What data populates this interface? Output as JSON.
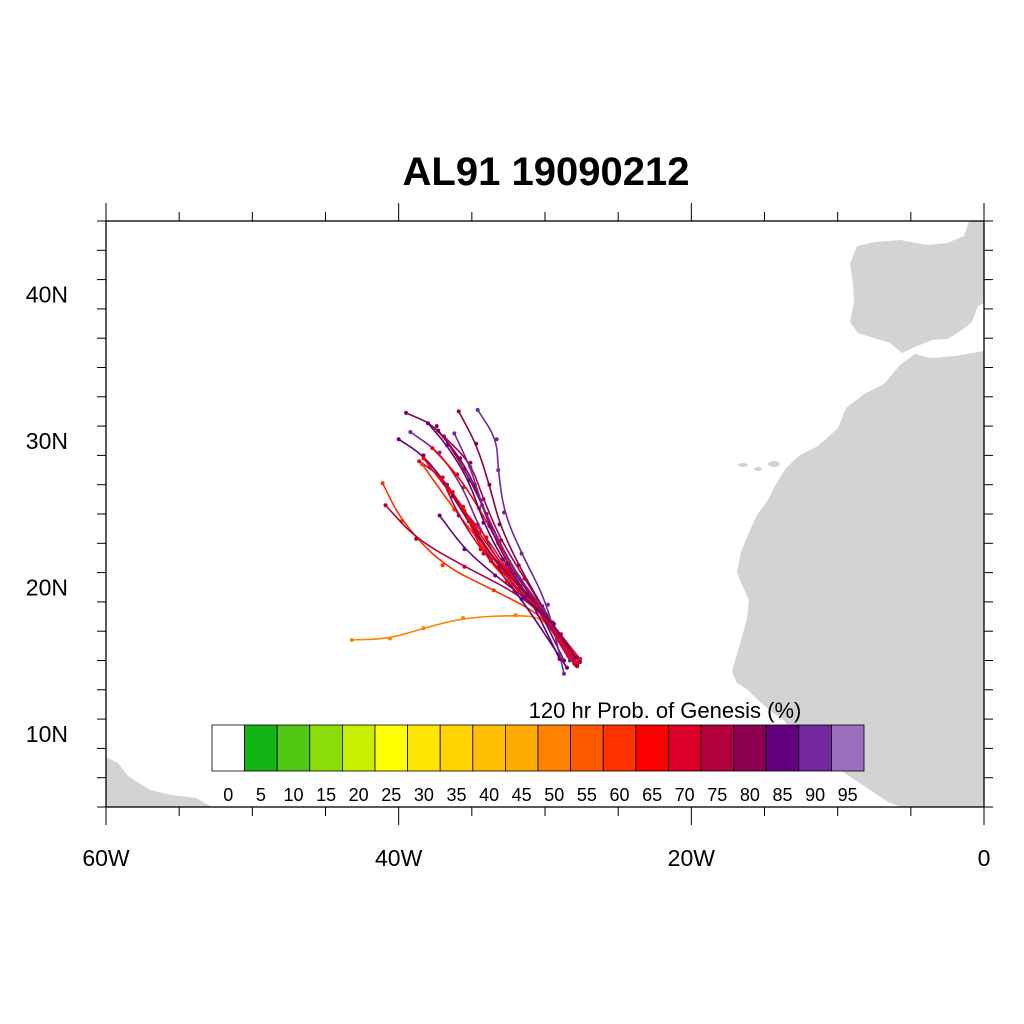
{
  "title": "AL91 19090212",
  "axes": {
    "x_ticks": [
      {
        "lon": -60,
        "label": "60W"
      },
      {
        "lon": -40,
        "label": "40W"
      },
      {
        "lon": -20,
        "label": "20W"
      },
      {
        "lon": 0,
        "label": "0"
      }
    ],
    "y_ticks": [
      {
        "lat": 10,
        "label": "10N"
      },
      {
        "lat": 20,
        "label": "20N"
      },
      {
        "lat": 30,
        "label": "30N"
      },
      {
        "lat": 40,
        "label": "40N"
      }
    ],
    "lon_range": [
      -60,
      0
    ],
    "lat_range": [
      5,
      45
    ]
  },
  "colors": {
    "land": "#d3d3d3",
    "frame": "#000000"
  },
  "legend": {
    "title": "120 hr Prob. of Genesis (%)",
    "bins": [
      {
        "label": "0",
        "color": "#ffffff"
      },
      {
        "label": "5",
        "color": "#14b414"
      },
      {
        "label": "10",
        "color": "#50c814"
      },
      {
        "label": "15",
        "color": "#8cdc0a"
      },
      {
        "label": "20",
        "color": "#c8ee00"
      },
      {
        "label": "25",
        "color": "#ffff00"
      },
      {
        "label": "30",
        "color": "#ffe600"
      },
      {
        "label": "35",
        "color": "#ffd200"
      },
      {
        "label": "40",
        "color": "#ffbe00"
      },
      {
        "label": "45",
        "color": "#ffaa00"
      },
      {
        "label": "50",
        "color": "#ff8200"
      },
      {
        "label": "55",
        "color": "#ff5a00"
      },
      {
        "label": "60",
        "color": "#ff3200"
      },
      {
        "label": "65",
        "color": "#ff0000"
      },
      {
        "label": "70",
        "color": "#dc0028"
      },
      {
        "label": "75",
        "color": "#b4003c"
      },
      {
        "label": "80",
        "color": "#8c0050"
      },
      {
        "label": "85",
        "color": "#64007f"
      },
      {
        "label": "90",
        "color": "#7328a0"
      },
      {
        "label": "95",
        "color": "#9b6ebe"
      }
    ]
  },
  "tracks": [
    {
      "color": "#ff8200",
      "points": [
        [
          -43.2,
          16.4
        ],
        [
          -40.6,
          16.5
        ],
        [
          -38.3,
          17.2
        ],
        [
          -35.6,
          17.9
        ],
        [
          -32,
          18.1
        ],
        [
          -30,
          17.9
        ],
        [
          -28.2,
          15.2
        ]
      ]
    },
    {
      "color": "#ff3200",
      "points": [
        [
          -41.1,
          27.1
        ],
        [
          -39.8,
          24.5
        ],
        [
          -37,
          21.5
        ],
        [
          -33.5,
          19.8
        ],
        [
          -30,
          18
        ],
        [
          -28.1,
          15
        ]
      ]
    },
    {
      "color": "#b4003c",
      "points": [
        [
          -40.9,
          25.6
        ],
        [
          -38.8,
          23.3
        ],
        [
          -35.5,
          21.4
        ],
        [
          -32.1,
          19.7
        ],
        [
          -29.5,
          17.6
        ],
        [
          -27.9,
          14.7
        ]
      ]
    },
    {
      "color": "#8c0050",
      "points": [
        [
          -39.5,
          31.9
        ],
        [
          -37.4,
          31
        ],
        [
          -35.5,
          28.1
        ],
        [
          -34,
          25
        ],
        [
          -32.4,
          21.6
        ],
        [
          -29.8,
          17.8
        ],
        [
          -28,
          14.8
        ]
      ]
    },
    {
      "color": "#64007f",
      "points": [
        [
          -40,
          30.1
        ],
        [
          -38.3,
          29
        ],
        [
          -36.7,
          27
        ],
        [
          -35.2,
          24.5
        ],
        [
          -33.7,
          21.8
        ],
        [
          -31.6,
          19.2
        ],
        [
          -28.5,
          14.5
        ]
      ]
    },
    {
      "color": "#7328a0",
      "points": [
        [
          -39.2,
          30.6
        ],
        [
          -37.2,
          29.2
        ],
        [
          -35.6,
          26.8
        ],
        [
          -34.6,
          24.3
        ],
        [
          -33,
          21.4
        ],
        [
          -30.5,
          18.6
        ],
        [
          -28.3,
          15
        ]
      ]
    },
    {
      "color": "#8c0050",
      "points": [
        [
          -35.9,
          32
        ],
        [
          -34.7,
          29.8
        ],
        [
          -33.8,
          27
        ],
        [
          -33.1,
          24.3
        ],
        [
          -31.8,
          21.5
        ],
        [
          -30.2,
          18.7
        ],
        [
          -27.8,
          14.8
        ]
      ]
    },
    {
      "color": "#ff0000",
      "points": [
        [
          -38.3,
          28.8
        ],
        [
          -36.6,
          26.6
        ],
        [
          -35.6,
          25.3
        ],
        [
          -34,
          23.4
        ],
        [
          -32.3,
          20.8
        ],
        [
          -30.2,
          18.4
        ],
        [
          -27.8,
          14.6
        ]
      ]
    },
    {
      "color": "#dc0028",
      "points": [
        [
          -38.6,
          28.6
        ],
        [
          -37,
          27.5
        ],
        [
          -35.5,
          25.2
        ],
        [
          -33.6,
          22
        ],
        [
          -31.2,
          19.6
        ],
        [
          -27.6,
          15.1
        ]
      ]
    },
    {
      "color": "#ff0000",
      "points": [
        [
          -37.7,
          29.5
        ],
        [
          -36,
          27.7
        ],
        [
          -34.5,
          25.4
        ],
        [
          -33.2,
          23
        ],
        [
          -31.5,
          20.2
        ],
        [
          -28.4,
          15.5
        ]
      ]
    },
    {
      "color": "#b4003c",
      "points": [
        [
          -36.9,
          30.3
        ],
        [
          -35.1,
          28.5
        ],
        [
          -34.2,
          26
        ],
        [
          -33,
          23.2
        ],
        [
          -31.4,
          20.6
        ],
        [
          -28.1,
          15.3
        ]
      ]
    },
    {
      "color": "#8c0050",
      "points": [
        [
          -37.3,
          30.7
        ],
        [
          -35.8,
          28.8
        ],
        [
          -34.8,
          27
        ],
        [
          -33.8,
          24.2
        ],
        [
          -32.6,
          21.6
        ],
        [
          -30.7,
          19.1
        ],
        [
          -28.7,
          15
        ]
      ]
    },
    {
      "color": "#7328a0",
      "points": [
        [
          -34.6,
          32.1
        ],
        [
          -33.3,
          30.1
        ],
        [
          -33.2,
          28
        ],
        [
          -32.8,
          25.1
        ],
        [
          -31.6,
          22.3
        ],
        [
          -29.8,
          18.8
        ],
        [
          -28.7,
          14.1
        ]
      ]
    },
    {
      "color": "#dc0028",
      "points": [
        [
          -37.9,
          28.2
        ],
        [
          -36.3,
          26.5
        ],
        [
          -34.5,
          23.7
        ],
        [
          -32.7,
          21.2
        ],
        [
          -30.7,
          19
        ],
        [
          -28.4,
          15.3
        ]
      ]
    },
    {
      "color": "#64007f",
      "points": [
        [
          -38,
          31.2
        ],
        [
          -36.7,
          29.7
        ],
        [
          -35.2,
          27.3
        ],
        [
          -34.2,
          24.4
        ],
        [
          -32.9,
          21.9
        ],
        [
          -31,
          19.2
        ],
        [
          -29,
          15.1
        ]
      ]
    },
    {
      "color": "#ff3200",
      "points": [
        [
          -38.4,
          28.4
        ],
        [
          -36.2,
          25.3
        ],
        [
          -34.2,
          22.8
        ],
        [
          -32.2,
          20.2
        ],
        [
          -29.7,
          17.8
        ],
        [
          -27.7,
          15
        ]
      ]
    },
    {
      "color": "#b4003c",
      "points": [
        [
          -36.9,
          27.1
        ],
        [
          -35.9,
          24.9
        ],
        [
          -34.2,
          22.3
        ],
        [
          -31.8,
          19.9
        ],
        [
          -29.5,
          17.2
        ],
        [
          -27.6,
          14.9
        ]
      ]
    },
    {
      "color": "#7328a0",
      "points": [
        [
          -36.2,
          30.5
        ],
        [
          -35.1,
          28.2
        ],
        [
          -34.3,
          25.6
        ],
        [
          -33.3,
          23.4
        ],
        [
          -31.8,
          20.7
        ],
        [
          -30.1,
          18.5
        ],
        [
          -28.3,
          15.6
        ]
      ]
    },
    {
      "color": "#8c0050",
      "points": [
        [
          -36.3,
          26.2
        ],
        [
          -34.8,
          23.8
        ],
        [
          -33.1,
          21.4
        ],
        [
          -31.2,
          19.5
        ],
        [
          -29.4,
          17.5
        ],
        [
          -27.8,
          14.7
        ]
      ]
    },
    {
      "color": "#ff0000",
      "points": [
        [
          -35.6,
          25.5
        ],
        [
          -34.4,
          22.6
        ],
        [
          -32.6,
          20.4
        ],
        [
          -30.6,
          18.7
        ],
        [
          -28.9,
          16.8
        ],
        [
          -27.9,
          14.9
        ]
      ]
    },
    {
      "color": "#64007f",
      "points": [
        [
          -37.2,
          24.9
        ],
        [
          -35.5,
          22.6
        ],
        [
          -33.4,
          20.8
        ],
        [
          -31.4,
          19.3
        ],
        [
          -29.4,
          17.5
        ],
        [
          -27.9,
          15.2
        ]
      ]
    }
  ]
}
